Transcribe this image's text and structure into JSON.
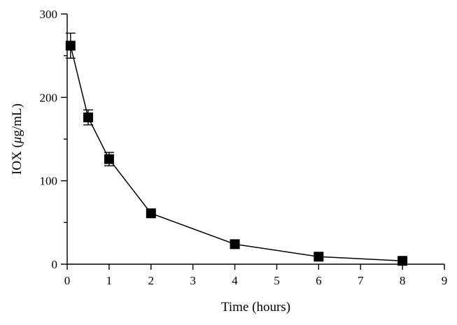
{
  "chart_data": {
    "type": "line",
    "title": "",
    "xlabel": "Time (hours)",
    "ylabel_parts": [
      "IOX (",
      "μ",
      "g/mL)"
    ],
    "xlim": [
      0,
      9
    ],
    "ylim": [
      0,
      300
    ],
    "x_ticks": [
      0,
      1,
      2,
      3,
      4,
      5,
      6,
      7,
      8,
      9
    ],
    "y_ticks": [
      0,
      100,
      200,
      300
    ],
    "grid": false,
    "marker": "square",
    "color": "#000000",
    "series": [
      {
        "x": [
          0.08,
          0.5,
          1,
          2,
          4,
          6,
          8
        ],
        "y": [
          262,
          176,
          126,
          61,
          24,
          9,
          4
        ],
        "error": [
          15,
          9,
          8,
          0,
          0,
          0,
          0
        ]
      }
    ]
  }
}
